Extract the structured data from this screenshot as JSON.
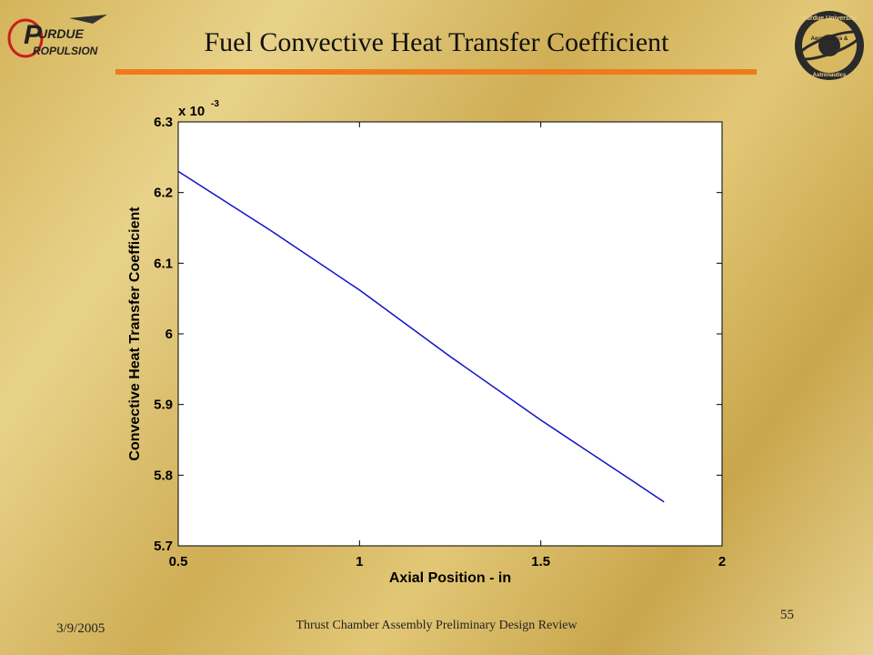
{
  "slide": {
    "title": "Fuel Convective Heat Transfer Coefficient",
    "footer_date": "3/9/2005",
    "footer_center": "Thrust Chamber Assembly Preliminary Design Review",
    "page_number": "55",
    "logo_left_text": [
      "URDUE",
      "ROPULSION"
    ],
    "logo_right_text": [
      "Purdue University",
      "Aeronautics &",
      "Astronautics"
    ],
    "accent_color": "#f07a1a"
  },
  "chart_data": {
    "type": "line",
    "title": "",
    "xlabel": "Axial Position - in",
    "ylabel": "Convective Heat Transfer Coefficient",
    "y_multiplier_label": "x 10",
    "y_multiplier_exponent": "-3",
    "xlim": [
      0.5,
      2
    ],
    "ylim": [
      5.7,
      6.3
    ],
    "x_ticks": [
      0.5,
      1,
      1.5,
      2
    ],
    "x_tick_labels": [
      "0.5",
      "1",
      "1.5",
      "2"
    ],
    "y_ticks": [
      5.7,
      5.8,
      5.9,
      6.0,
      6.1,
      6.2,
      6.3
    ],
    "y_tick_labels": [
      "5.7",
      "5.8",
      "5.9",
      "6",
      "6.1",
      "6.2",
      "6.3"
    ],
    "grid": false,
    "series": [
      {
        "color": "#1010c8",
        "x": [
          0.5,
          0.75,
          1.0,
          1.25,
          1.5,
          1.75,
          1.84
        ],
        "y": [
          6.23,
          6.148,
          6.062,
          5.968,
          5.878,
          5.793,
          5.762
        ]
      }
    ]
  }
}
